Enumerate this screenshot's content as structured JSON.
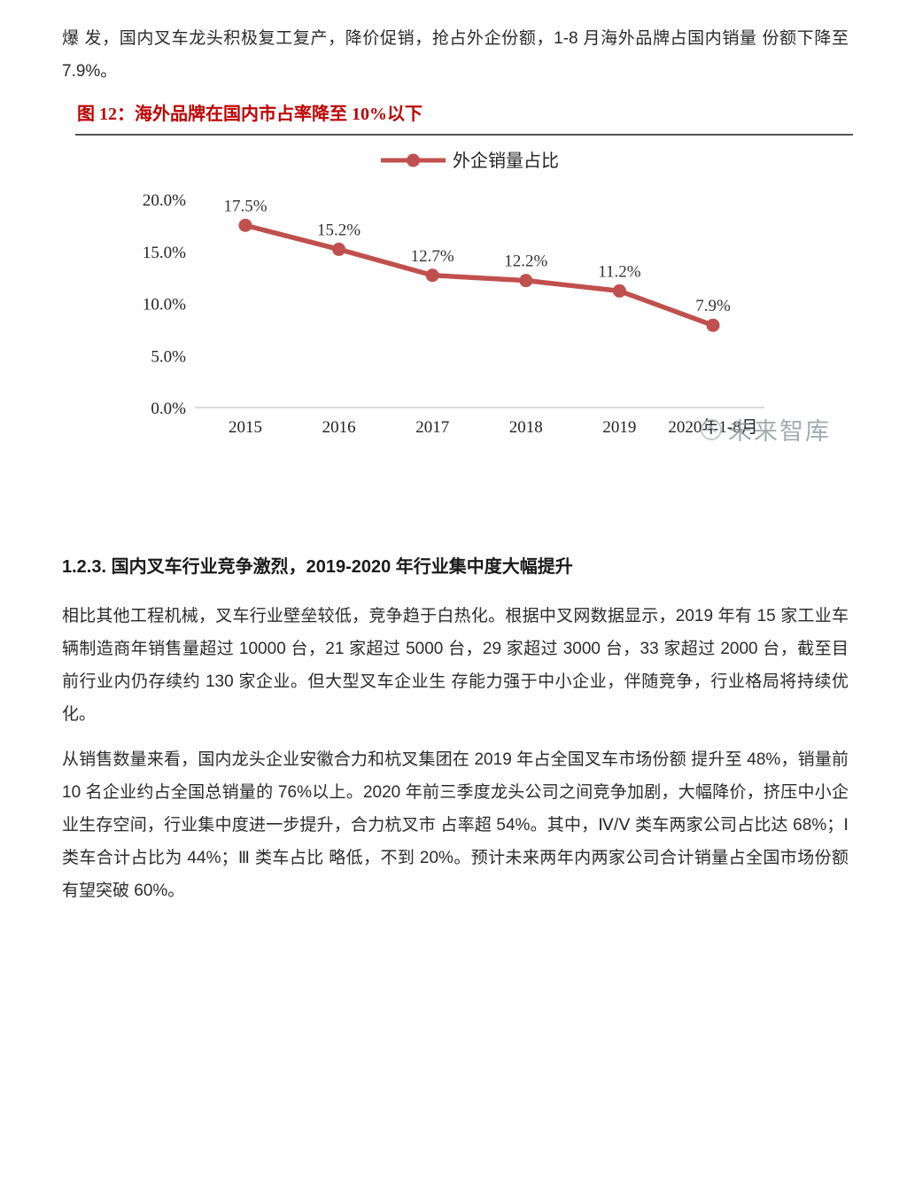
{
  "intro": {
    "text": "爆 发，国内叉车龙头积极复工复产，降价促销，抢占外企份额，1-8 月海外品牌占国内销量 份额下降至 7.9%。"
  },
  "figure": {
    "title": "图 12：海外品牌在国内市占率降至 10%以下",
    "watermark": "未来智库",
    "title_color": "#c00000",
    "watermark_color": "#8e969c"
  },
  "chart_data": {
    "type": "line",
    "title": "图 12：海外品牌在国内市占率降至 10%以下",
    "categories": [
      "2015",
      "2016",
      "2017",
      "2018",
      "2019",
      "2020年1-8月"
    ],
    "series": [
      {
        "name": "外企销量占比",
        "values": [
          17.5,
          15.2,
          12.7,
          12.2,
          11.2,
          7.9
        ]
      }
    ],
    "data_labels": [
      "17.5%",
      "15.2%",
      "12.7%",
      "12.2%",
      "11.2%",
      "7.9%"
    ],
    "y_ticks": [
      "20.0%",
      "15.0%",
      "10.0%",
      "5.0%",
      "0.0%"
    ],
    "ylim": [
      0,
      20
    ],
    "xlabel": "",
    "ylabel": "",
    "grid": false,
    "legend_position": "top",
    "line_color": "#C0504D",
    "axis_color": "#D9D9D9",
    "label_color": "#333333"
  },
  "section": {
    "heading": "1.2.3. 国内叉车行业竞争激烈，2019-2020 年行业集中度大幅提升",
    "paragraph1": "相比其他工程机械，叉车行业壁垒较低，竞争趋于白热化。根据中叉网数据显示，2019 年有 15 家工业车辆制造商年销售量超过 10000 台，21 家超过 5000 台，29 家超过 3000 台，33 家超过 2000 台，截至目前行业内仍存续约 130 家企业。但大型叉车企业生 存能力强于中小企业，伴随竞争，行业格局将持续优化。",
    "paragraph2": "从销售数量来看，国内龙头企业安徽合力和杭叉集团在 2019 年占全国叉车市场份额 提升至 48%，销量前 10 名企业约占全国总销量的 76%以上。2020 年前三季度龙头公司之间竞争加剧，大幅降价，挤压中小企业生存空间，行业集中度进一步提升，合力杭叉市 占率超 54%。其中，Ⅳ/Ⅴ 类车两家公司占比达 68%；Ⅰ 类车合计占比为 44%；Ⅲ 类车占比 略低，不到 20%。预计未来两年内两家公司合计销量占全国市场份额有望突破 60%。"
  }
}
